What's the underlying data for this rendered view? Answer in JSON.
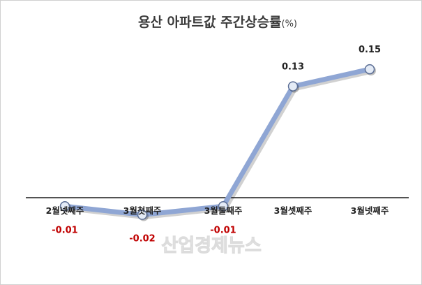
{
  "chart_data": {
    "type": "line",
    "title": "용산 아파트값 주간상승률",
    "title_unit": "(%)",
    "categories": [
      "2월넷째주",
      "3월첫째주",
      "3월둘째주",
      "3월셋째주",
      "3월넷째주"
    ],
    "series": [
      {
        "values": [
          -0.01,
          -0.02,
          -0.01,
          0.13,
          0.15
        ]
      }
    ],
    "data_labels": [
      "-0.01",
      "-0.02",
      "-0.01",
      "0.13",
      "0.15"
    ],
    "ylim": [
      -0.02,
      0.15
    ],
    "grid": false,
    "legend": "none",
    "colors": {
      "line": "#8fa6d4",
      "marker_fill": "#e4ebf6",
      "marker_stroke": "#5b6e95",
      "positive_label": "#222222",
      "negative_label": "#c00000",
      "axis": "#1a1a1a",
      "frame": "#d0d0d0"
    }
  },
  "watermark": "산업경제뉴스"
}
